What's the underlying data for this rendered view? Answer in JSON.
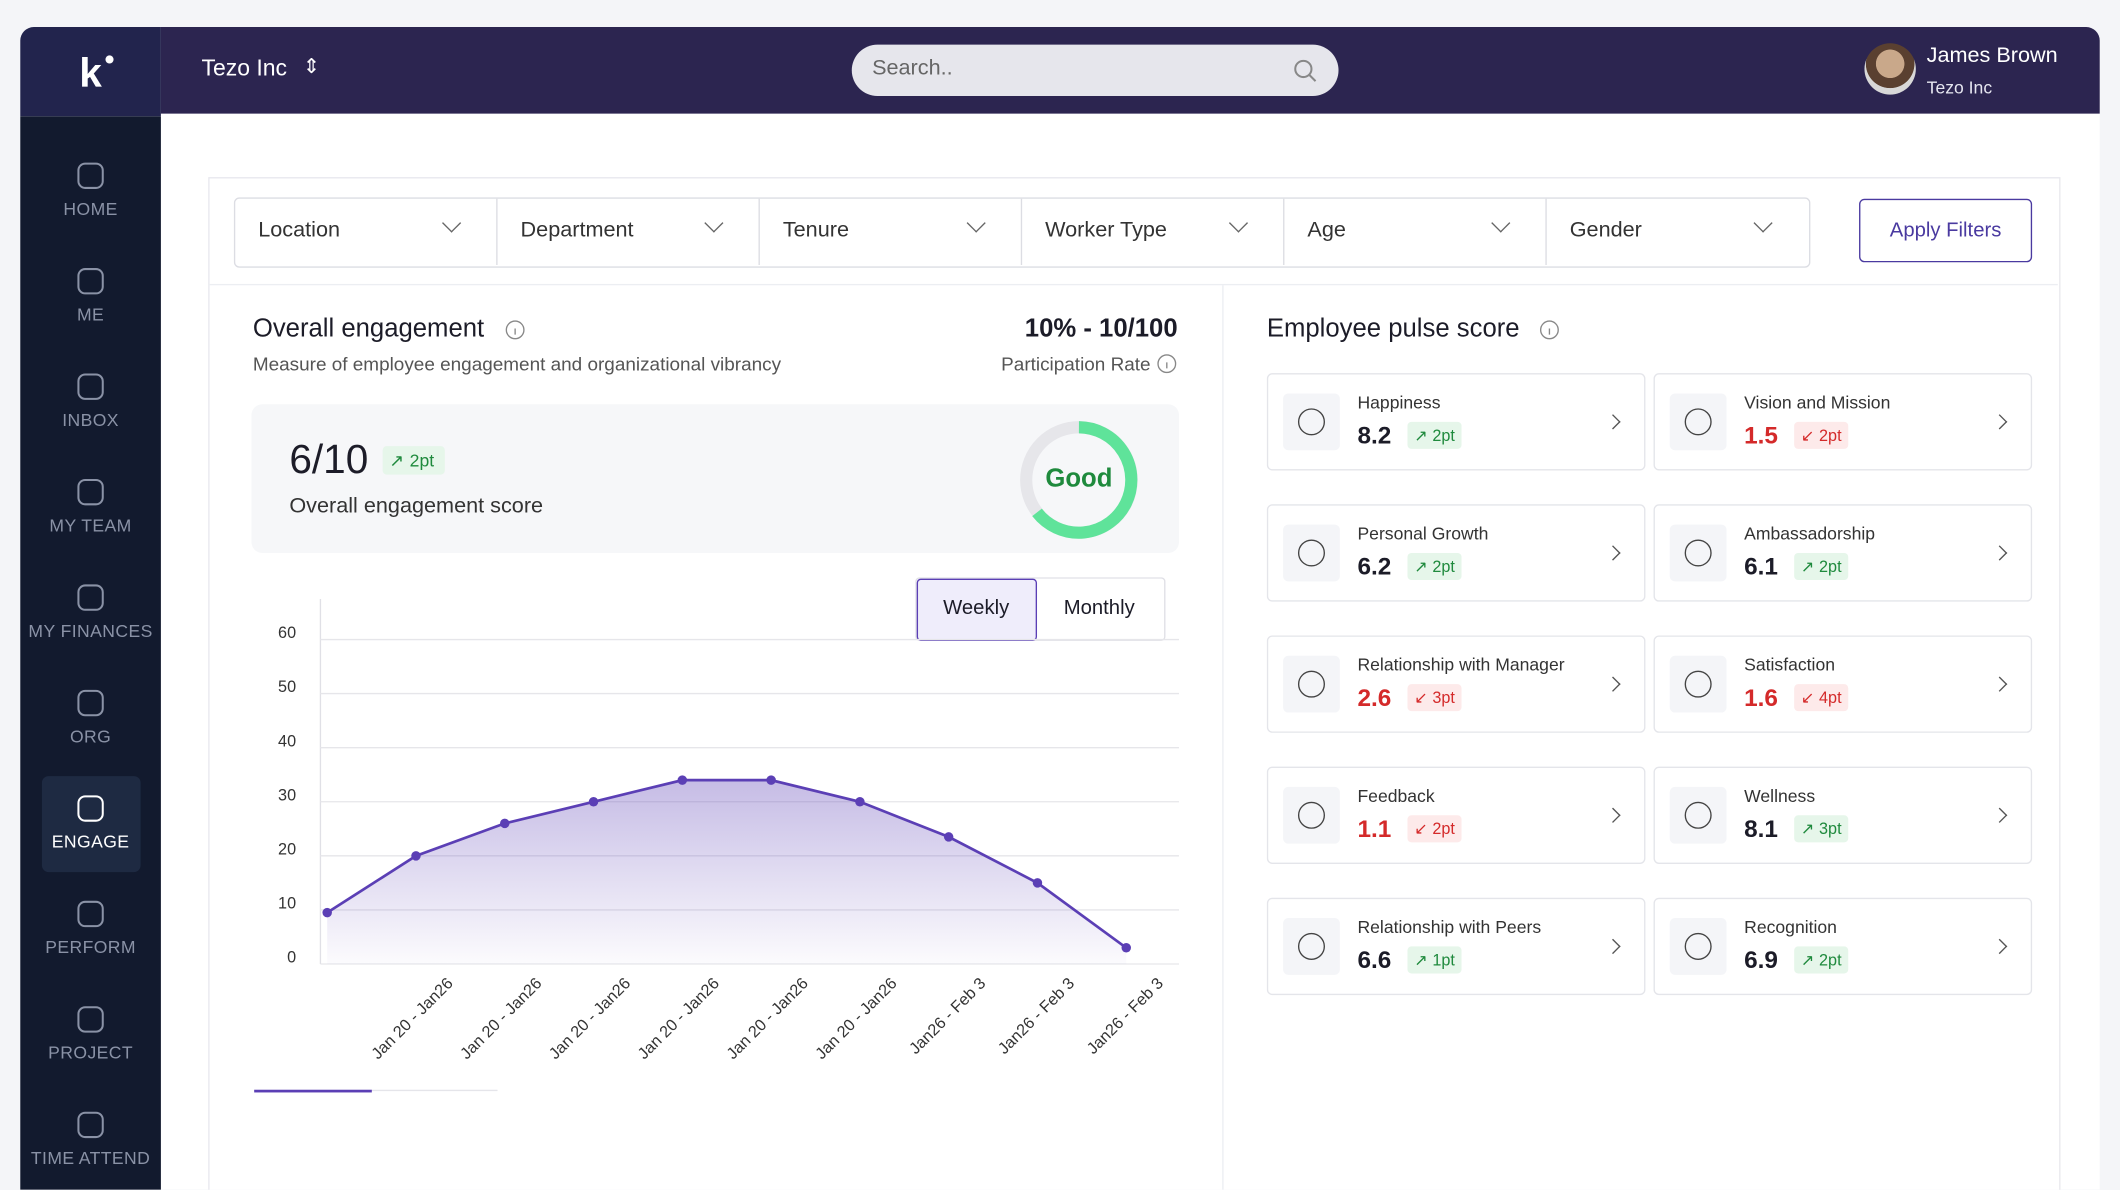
{
  "header": {
    "company": "Tezo Inc",
    "search_placeholder": "Search..",
    "user_name": "James Brown",
    "user_company": "Tezo Inc"
  },
  "nav": [
    {
      "label": "HOME"
    },
    {
      "label": "ME"
    },
    {
      "label": "INBOX"
    },
    {
      "label": "MY TEAM"
    },
    {
      "label": "MY FINANCES"
    },
    {
      "label": "ORG"
    },
    {
      "label": "ENGAGE",
      "active": true
    },
    {
      "label": "PERFORM"
    },
    {
      "label": "PROJECT"
    },
    {
      "label": "TIME ATTEND"
    }
  ],
  "filters": [
    "Location",
    "Department",
    "Tenure",
    "Worker Type",
    "Age",
    "Gender"
  ],
  "apply_button": "Apply Filters",
  "engagement": {
    "title": "Overall engagement",
    "subtitle": "Measure of employee engagement and organizational vibrancy",
    "participation": "10% - 10/100",
    "participation_label": "Participation Rate",
    "score": "6/10",
    "score_change": "2pt",
    "score_label": "Overall engagement score",
    "rating": "Good",
    "toggle": [
      "Weekly",
      "Monthly"
    ]
  },
  "chart_data": {
    "type": "line",
    "categories": [
      null,
      "Jan 20 - Jan26",
      "Jan 20 - Jan26",
      "Jan 20 - Jan26",
      "Jan 20 - Jan26",
      "Jan 20 - Jan26",
      "Jan 20 - Jan26",
      "Jan26 - Feb 3",
      "Jan26 - Feb 3",
      "Jan26 - Feb 3"
    ],
    "series": [
      {
        "name": "Engagement",
        "color": "#5b3fb5",
        "values": [
          9.5,
          20,
          26,
          30,
          34,
          34,
          30,
          23.5,
          15,
          3
        ]
      }
    ],
    "ylim": [
      0,
      67.5
    ],
    "yticks": [
      0,
      10,
      20,
      30,
      40,
      50,
      60
    ],
    "grid": true
  },
  "pulse": {
    "title": "Employee pulse score",
    "items": [
      {
        "name": "Happiness",
        "score": 8.2,
        "change": "2pt",
        "trend": "up"
      },
      {
        "name": "Vision and Mission",
        "score": 1.5,
        "change": "2pt",
        "trend": "down"
      },
      {
        "name": "Personal Growth",
        "score": 6.2,
        "change": "2pt",
        "trend": "up"
      },
      {
        "name": "Ambassadorship",
        "score": 6.1,
        "change": "2pt",
        "trend": "up"
      },
      {
        "name": "Relationship with Manager",
        "score": 2.6,
        "change": "3pt",
        "trend": "down"
      },
      {
        "name": "Satisfaction",
        "score": 1.6,
        "change": "4pt",
        "trend": "down"
      },
      {
        "name": "Feedback",
        "score": 1.1,
        "change": "2pt",
        "trend": "down"
      },
      {
        "name": "Wellness",
        "score": 8.1,
        "change": "3pt",
        "trend": "up"
      },
      {
        "name": "Relationship with Peers",
        "score": 6.6,
        "change": "1pt",
        "trend": "up"
      },
      {
        "name": "Recognition",
        "score": 6.9,
        "change": "2pt",
        "trend": "up"
      }
    ]
  }
}
